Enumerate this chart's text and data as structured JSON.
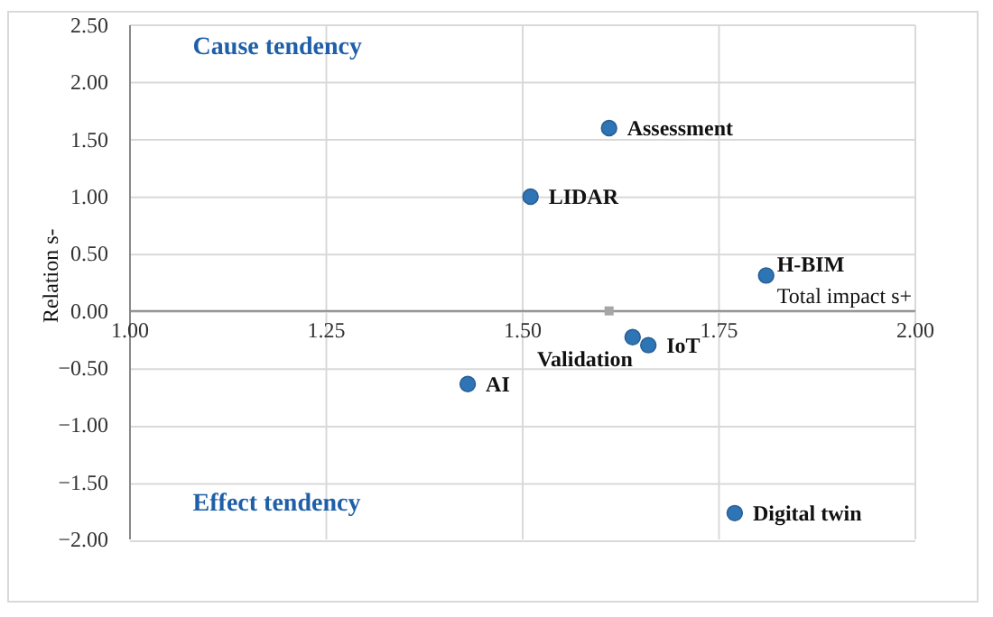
{
  "chart_data": {
    "type": "scatter",
    "xlabel": "Total impact  s+",
    "ylabel": "Relation s-",
    "annotations": [
      "Cause tendency",
      "Effect tendency"
    ],
    "xlim": [
      1,
      2
    ],
    "xticks": [
      {
        "value": 1,
        "label": "1.00"
      },
      {
        "value": 1.25,
        "label": "1.25"
      },
      {
        "value": 1.5,
        "label": "1.50"
      },
      {
        "value": 1.75,
        "label": "1.75"
      },
      {
        "value": 2,
        "label": "2.00"
      }
    ],
    "ylim": [
      -2,
      2.5
    ],
    "yticks": [
      {
        "value": -2,
        "label": "−2.00"
      },
      {
        "value": -1.5,
        "label": "−1.50"
      },
      {
        "value": -1,
        "label": "−1.00"
      },
      {
        "value": -0.5,
        "label": "−0.50"
      },
      {
        "value": 0,
        "label": "0.00"
      },
      {
        "value": 0.5,
        "label": "0.50"
      },
      {
        "value": 1,
        "label": "1.00"
      },
      {
        "value": 1.5,
        "label": "1.50"
      },
      {
        "value": 2,
        "label": "2.00"
      },
      {
        "value": 2.5,
        "label": "2.50"
      }
    ],
    "grid": true,
    "marker": "circle",
    "series": [
      {
        "color": "#2e75b6",
        "x": [
          1.61,
          1.51,
          1.81,
          1.64,
          1.66,
          1.43,
          1.77
        ],
        "values": [
          1.6,
          1.0,
          0.31,
          -0.23,
          -0.3,
          -0.64,
          -1.77
        ],
        "value_labels": [
          "Assessment",
          "LIDAR",
          "H-BIM",
          "Validation",
          "IoT",
          "AI",
          "Digital twin"
        ]
      },
      {
        "color": "#a6a6a6",
        "x": [
          1.61
        ],
        "values": [
          0
        ],
        "marker": "square"
      }
    ]
  }
}
